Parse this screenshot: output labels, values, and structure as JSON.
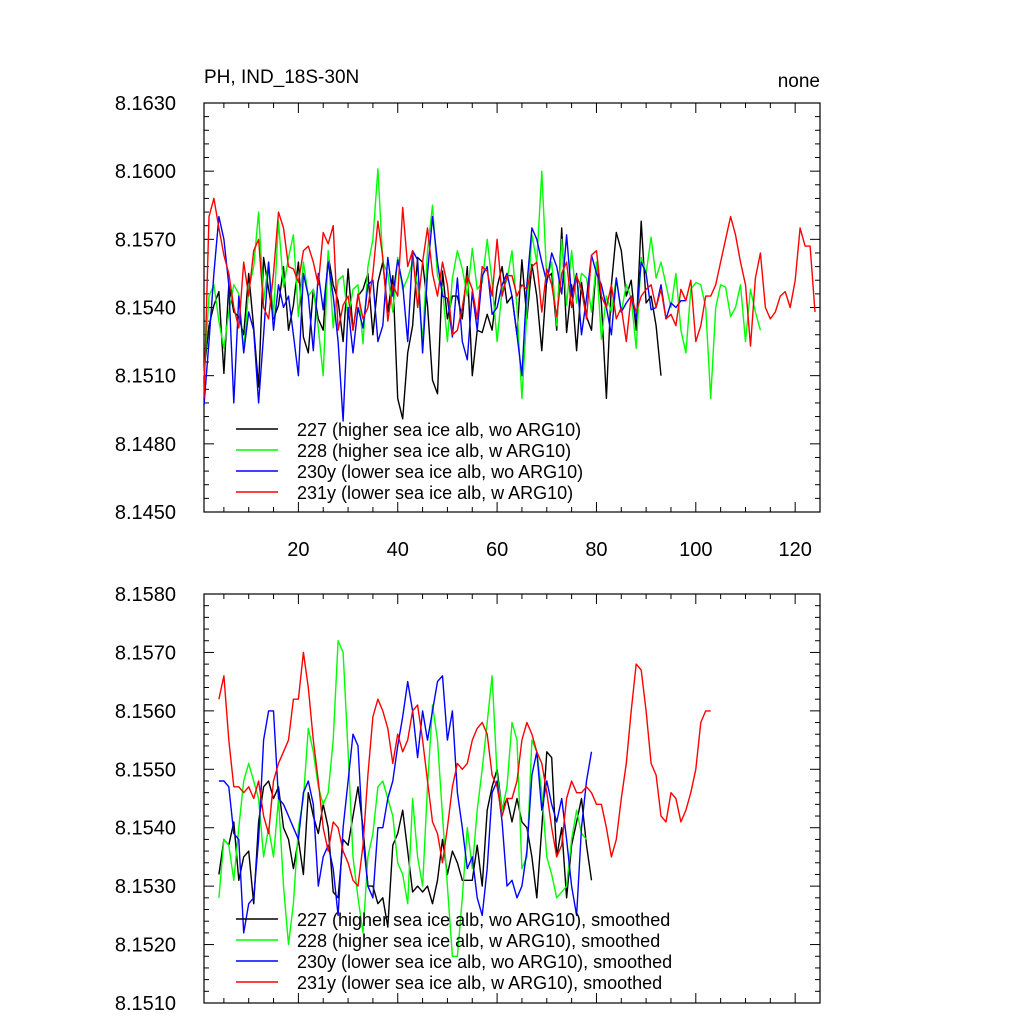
{
  "chart_data": [
    {
      "type": "line",
      "title": "PH, IND_18S-30N",
      "right_title": "none",
      "xlim": [
        1,
        125
      ],
      "ylim": [
        8.145,
        8.163
      ],
      "x_ticks": [
        20,
        40,
        60,
        80,
        100,
        120
      ],
      "y_ticks": [
        "8.1450",
        "8.1480",
        "8.1510",
        "8.1540",
        "8.1570",
        "8.1600",
        "8.1630"
      ],
      "legend_position": "bottom-left",
      "series": [
        {
          "name": "227 (higher sea ice alb, wo ARG10)",
          "color": "#000000",
          "x_start": 1,
          "values": [
            8.1512,
            8.1532,
            8.1541,
            8.1547,
            8.1511,
            8.155,
            8.1538,
            8.1536,
            8.1528,
            8.1555,
            8.1531,
            8.1505,
            8.1562,
            8.1548,
            8.1535,
            8.1541,
            8.1558,
            8.153,
            8.1541,
            8.156,
            8.1527,
            8.152,
            8.1548,
            8.1535,
            8.153,
            8.1563,
            8.155,
            8.1543,
            8.1525,
            8.1557,
            8.153,
            8.1545,
            8.1548,
            8.1555,
            8.1528,
            8.1551,
            8.156,
            8.1538,
            8.1554,
            8.15,
            8.1491,
            8.152,
            8.1532,
            8.1562,
            8.156,
            8.1541,
            8.1508,
            8.1502,
            8.1556,
            8.1535,
            8.1545,
            8.1545,
            8.1535,
            8.1558,
            8.151,
            8.153,
            8.1529,
            8.1537,
            8.153,
            8.1549,
            8.1558,
            8.1542,
            8.1545,
            8.1528,
            8.1561,
            8.1535,
            8.1559,
            8.1545,
            8.1521,
            8.1553,
            8.1555,
            8.153,
            8.1575,
            8.1529,
            8.155,
            8.1521,
            8.1551,
            8.1536,
            8.153,
            8.156,
            8.1542,
            8.15,
            8.155,
            8.1573,
            8.1565,
            8.1545,
            8.1552,
            8.153,
            8.1578,
            8.1542,
            8.1545,
            8.1532,
            8.151
          ]
        },
        {
          "name": "228 (higher sea ice alb, w ARG10)",
          "color": "#00ff00",
          "x_start": 1,
          "values": [
            8.151,
            8.1545,
            8.155,
            8.1534,
            8.1522,
            8.1538,
            8.155,
            8.1546,
            8.1521,
            8.1548,
            8.1558,
            8.1582,
            8.1543,
            8.156,
            8.1536,
            8.1578,
            8.1549,
            8.1562,
            8.1572,
            8.1536,
            8.156,
            8.1545,
            8.1548,
            8.1531,
            8.151,
            8.1565,
            8.1531,
            8.1552,
            8.1554,
            8.1535,
            8.1548,
            8.155,
            8.1524,
            8.1558,
            8.157,
            8.1601,
            8.156,
            8.1555,
            8.1538,
            8.1562,
            8.1548,
            8.1553,
            8.156,
            8.155,
            8.1525,
            8.1565,
            8.1585,
            8.1554,
            8.1548,
            8.1525,
            8.1553,
            8.1565,
            8.1557,
            8.1545,
            8.1566,
            8.1548,
            8.1551,
            8.157,
            8.1551,
            8.1525,
            8.1548,
            8.1552,
            8.1565,
            8.154,
            8.15,
            8.1538,
            8.1572,
            8.156,
            8.16,
            8.1552,
            8.156,
            8.1532,
            8.157,
            8.1541,
            8.1565,
            8.1542,
            8.1555,
            8.1553,
            8.1538,
            8.156,
            8.1526,
            8.1545,
            8.1538,
            8.1553,
            8.1538,
            8.155,
            8.1544,
            8.1522,
            8.1562,
            8.1555,
            8.1571,
            8.1553,
            8.156,
            8.155,
            8.154,
            8.1555,
            8.153,
            8.152,
            8.1548,
            8.1551,
            8.155,
            8.154,
            8.15,
            8.154,
            8.155,
            8.1549,
            8.1536,
            8.154,
            8.155,
            8.1525,
            8.1548,
            8.1538,
            8.153
          ]
        },
        {
          "name": "230y (lower sea ice alb, wo ARG10)",
          "color": "#0000ff",
          "x_start": 1,
          "values": [
            8.1497,
            8.1525,
            8.1555,
            8.158,
            8.157,
            8.155,
            8.1498,
            8.1545,
            8.152,
            8.1538,
            8.153,
            8.1498,
            8.1528,
            8.156,
            8.153,
            8.155,
            8.154,
            8.1545,
            8.1528,
            8.151,
            8.1555,
            8.1545,
            8.1521,
            8.1555,
            8.1539,
            8.156,
            8.1545,
            8.1525,
            8.149,
            8.154,
            8.152,
            8.154,
            8.1531,
            8.155,
            8.1552,
            8.1525,
            8.1532,
            8.1562,
            8.1545,
            8.1561,
            8.155,
            8.1525,
            8.1565,
            8.1561,
            8.152,
            8.1555,
            8.158,
            8.156,
            8.1545,
            8.1544,
            8.1527,
            8.1553,
            8.1525,
            8.1517,
            8.1547,
            8.153,
            8.1554,
            8.1558,
            8.1537,
            8.154,
            8.155,
            8.1555,
            8.1545,
            8.1528,
            8.151,
            8.155,
            8.1575,
            8.157,
            8.156,
            8.1551,
            8.1564,
            8.1558,
            8.1546,
            8.1572,
            8.1545,
            8.1555,
            8.1528,
            8.1544,
            8.1563,
            8.1555,
            8.155,
            8.154,
            8.1528,
            8.1553,
            8.1538,
            8.1542,
            8.1545,
            8.1535,
            8.156,
            8.1555,
            8.1539,
            8.154,
            8.155,
            8.1535,
            8.1542,
            8.154,
            8.1543,
            8.1543
          ]
        },
        {
          "name": "231y (lower sea ice alb, w ARG10)",
          "color": "#ff0000",
          "x_start": 1,
          "values": [
            8.15,
            8.158,
            8.1588,
            8.1575,
            8.1563,
            8.1555,
            8.154,
            8.1531,
            8.156,
            8.1545,
            8.1565,
            8.157,
            8.154,
            8.1535,
            8.1555,
            8.1582,
            8.1575,
            8.1558,
            8.1557,
            8.1551,
            8.1565,
            8.1567,
            8.156,
            8.155,
            8.1573,
            8.1568,
            8.1576,
            8.153,
            8.1541,
            8.1545,
            8.153,
            8.1546,
            8.1535,
            8.154,
            8.1555,
            8.1578,
            8.1562,
            8.1534,
            8.155,
            8.1545,
            8.1584,
            8.1558,
            8.1565,
            8.154,
            8.156,
            8.1575,
            8.1555,
            8.1545,
            8.156,
            8.155,
            8.1528,
            8.153,
            8.154,
            8.1554,
            8.1548,
            8.1535,
            8.1558,
            8.1556,
            8.1545,
            8.157,
            8.1545,
            8.1554,
            8.1554,
            8.1545,
            8.155,
            8.1548,
            8.1558,
            8.156,
            8.1538,
            8.1557,
            8.155,
            8.1536,
            8.1555,
            8.156,
            8.154,
            8.1554,
            8.1548,
            8.1535,
            8.1563,
            8.1565,
            8.1545,
            8.154,
            8.155,
            8.1535,
            8.154,
            8.1525,
            8.1545,
            8.1538,
            8.1545,
            8.1548,
            8.155,
            8.154,
            8.1548,
            8.1535,
            8.1537,
            8.1532,
            8.1548,
            8.1543,
            8.1552,
            8.1525,
            8.1532,
            8.1545,
            8.1545,
            8.155,
            8.156,
            8.157,
            8.158,
            8.1572,
            8.156,
            8.155,
            8.1523,
            8.1553,
            8.1564,
            8.154,
            8.1535,
            8.1538,
            8.1545,
            8.1547,
            8.154,
            8.1552,
            8.1575,
            8.1567,
            8.1567,
            8.1538
          ]
        }
      ],
      "legend_entries": [
        "227 (higher sea ice alb, wo ARG10)",
        "228 (higher sea ice alb, w ARG10)",
        "230y (lower sea ice alb, wo ARG10)",
        "231y (lower sea ice alb, w ARG10)"
      ]
    },
    {
      "type": "line",
      "title": "",
      "xlim": [
        1,
        125
      ],
      "ylim": [
        8.151,
        8.158
      ],
      "x_ticks": [],
      "y_ticks": [
        "8.1510",
        "8.1520",
        "8.1530",
        "8.1540",
        "8.1550",
        "8.1560",
        "8.1570",
        "8.1580"
      ],
      "legend_position": "bottom-left",
      "series": [
        {
          "name": "227 (higher sea ice alb, wo ARG10), smoothed",
          "color": "#000000",
          "x_start": 4,
          "values": [
            8.1532,
            8.1538,
            8.1537,
            8.1541,
            8.1531,
            8.1535,
            8.1536,
            8.1527,
            8.1541,
            8.1547,
            8.1548,
            8.1545,
            8.1547,
            8.154,
            8.1538,
            8.1533,
            8.1538,
            8.1532,
            8.1546,
            8.1542,
            8.1539,
            8.1544,
            8.154,
            8.1529,
            8.1528,
            8.1538,
            8.1537,
            8.1542,
            8.1547,
            8.154,
            8.153,
            8.153,
            8.1527,
            8.1528,
            8.1523,
            8.1537,
            8.1539,
            8.1543,
            8.1536,
            8.1529,
            8.153,
            8.1529,
            8.153,
            8.1527,
            8.1531,
            8.1538,
            8.1532,
            8.1536,
            8.1534,
            8.1531,
            8.1531,
            8.1531,
            8.1537,
            8.153,
            8.1543,
            8.1547,
            8.155,
            8.1543,
            8.1545,
            8.1541,
            8.1545,
            8.1541,
            8.154,
            8.1535,
            8.1528,
            8.154,
            8.1553,
            8.1552,
            8.1535,
            8.154,
            8.1528,
            8.1537,
            8.1541,
            8.1545,
            8.1537,
            8.1531
          ]
        },
        {
          "name": "228 (higher sea ice alb, w ARG10), smoothed",
          "color": "#00ff00",
          "x_start": 4,
          "values": [
            8.1528,
            8.1538,
            8.1537,
            8.1531,
            8.154,
            8.1548,
            8.1551,
            8.1548,
            8.1545,
            8.1535,
            8.154,
            8.1535,
            8.1545,
            8.153,
            8.152,
            8.1527,
            8.154,
            8.1545,
            8.1557,
            8.1553,
            8.1547,
            8.1544,
            8.1546,
            8.1555,
            8.1572,
            8.157,
            8.1553,
            8.1535,
            8.1528,
            8.1522,
            8.1535,
            8.1539,
            8.1547,
            8.1548,
            8.1545,
            8.1542,
            8.1534,
            8.1532,
            8.1527,
            8.1545,
            8.1535,
            8.153,
            8.1547,
            8.1561,
            8.1555,
            8.1542,
            8.153,
            8.1518,
            8.1518,
            8.1528,
            8.154,
            8.1533,
            8.1543,
            8.155,
            8.1558,
            8.1566,
            8.1549,
            8.1543,
            8.1547,
            8.1558,
            8.1555,
            8.1533,
            8.1535,
            8.1555,
            8.1553,
            8.1546,
            8.1535,
            8.1532,
            8.1528,
            8.1529,
            8.153,
            8.1538,
            8.1543,
            8.1539,
            8.1538
          ]
        },
        {
          "name": "230y (lower sea ice alb, wo ARG10), smoothed",
          "color": "#0000ff",
          "x_start": 4,
          "values": [
            8.1548,
            8.1548,
            8.1547,
            8.1539,
            8.1538,
            8.1522,
            8.1527,
            8.1528,
            8.1538,
            8.1555,
            8.156,
            8.156,
            8.1545,
            8.1544,
            8.1542,
            8.154,
            8.1538,
            8.1546,
            8.1548,
            8.1544,
            8.153,
            8.1535,
            8.1537,
            8.1533,
            8.1525,
            8.154,
            8.1548,
            8.1556,
            8.1554,
            8.1538,
            8.153,
            8.1528,
            8.154,
            8.154,
            8.1545,
            8.1548,
            8.1554,
            8.1559,
            8.1565,
            8.156,
            8.1552,
            8.156,
            8.1555,
            8.156,
            8.1565,
            8.1566,
            8.1555,
            8.156,
            8.1546,
            8.154,
            8.1533,
            8.1535,
            8.1528,
            8.1525,
            8.1533,
            8.1546,
            8.1548,
            8.1541,
            8.153,
            8.1531,
            8.1528,
            8.153,
            8.1536,
            8.1549,
            8.1553,
            8.1543,
            8.1548,
            8.1544,
            8.1541,
            8.1545,
            8.1538,
            8.153,
            8.1525,
            8.154,
            8.1548,
            8.1553
          ]
        },
        {
          "name": "231y (lower sea ice alb, w ARG10), smoothed",
          "color": "#ff0000",
          "x_start": 4,
          "values": [
            8.1562,
            8.1566,
            8.1555,
            8.1547,
            8.1547,
            8.1546,
            8.1547,
            8.1545,
            8.1548,
            8.1542,
            8.1539,
            8.1548,
            8.1551,
            8.1553,
            8.1555,
            8.1562,
            8.1562,
            8.157,
            8.1564,
            8.1555,
            8.1548,
            8.154,
            8.1536,
            8.1541,
            8.154,
            8.1536,
            8.1534,
            8.1531,
            8.153,
            8.1537,
            8.1549,
            8.1559,
            8.1562,
            8.156,
            8.1557,
            8.1551,
            8.1556,
            8.1553,
            8.1555,
            8.156,
            8.1561,
            8.1555,
            8.1548,
            8.1541,
            8.1539,
            8.1534,
            8.154,
            8.1547,
            8.1551,
            8.155,
            8.1551,
            8.1555,
            8.1557,
            8.1558,
            8.1556,
            8.1549,
            8.1547,
            8.1542,
            8.1545,
            8.1545,
            8.1548,
            8.1555,
            8.1558,
            8.1556,
            8.1553,
            8.1551,
            8.1546,
            8.154,
            8.1535,
            8.1537,
            8.1545,
            8.1548,
            8.1546,
            8.1546,
            8.1547,
            8.1546,
            8.1544,
            8.1544,
            8.154,
            8.1535,
            8.1538,
            8.1545,
            8.1551,
            8.156,
            8.1568,
            8.1567,
            8.156,
            8.1551,
            8.1549,
            8.1542,
            8.1541,
            8.1546,
            8.1545,
            8.1541,
            8.1543,
            8.1546,
            8.155,
            8.1558,
            8.156,
            8.156
          ]
        }
      ],
      "legend_entries": [
        "227 (higher sea ice alb, wo ARG10), smoothed",
        "228 (higher sea ice alb, w ARG10), smoothed",
        "230y (lower sea ice alb, wo ARG10), smoothed",
        "231y (lower sea ice alb, w ARG10), smoothed"
      ]
    }
  ]
}
